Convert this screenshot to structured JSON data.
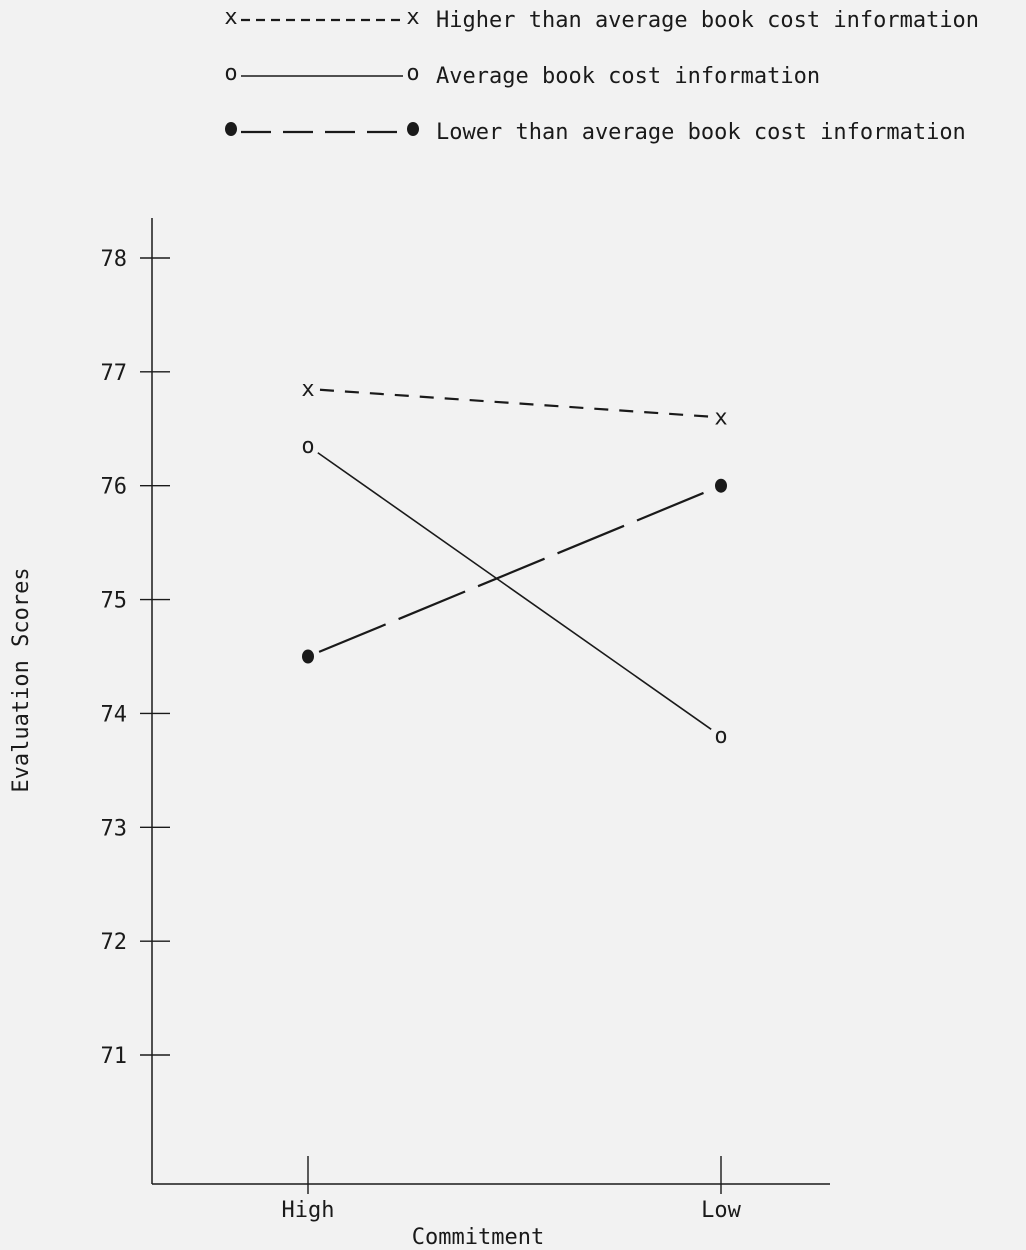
{
  "chart_data": {
    "type": "line",
    "title": "",
    "xlabel": "Commitment",
    "ylabel": "Evaluation Scores",
    "categories": [
      "High",
      "Low"
    ],
    "ylim": [
      70,
      78.3
    ],
    "yticks": [
      71,
      72,
      73,
      74,
      75,
      76,
      77,
      78
    ],
    "grid": false,
    "legend_position": "top",
    "series": [
      {
        "name": "Higher than average book cost information",
        "marker": "x",
        "line_style": "dashed",
        "values": [
          76.85,
          76.6
        ]
      },
      {
        "name": "Average book cost information",
        "marker": "o",
        "line_style": "solid",
        "values": [
          76.35,
          73.8
        ]
      },
      {
        "name": "Lower than average book cost information",
        "marker": "filled-circle",
        "line_style": "long-dashed",
        "values": [
          74.5,
          76.0
        ]
      }
    ]
  }
}
